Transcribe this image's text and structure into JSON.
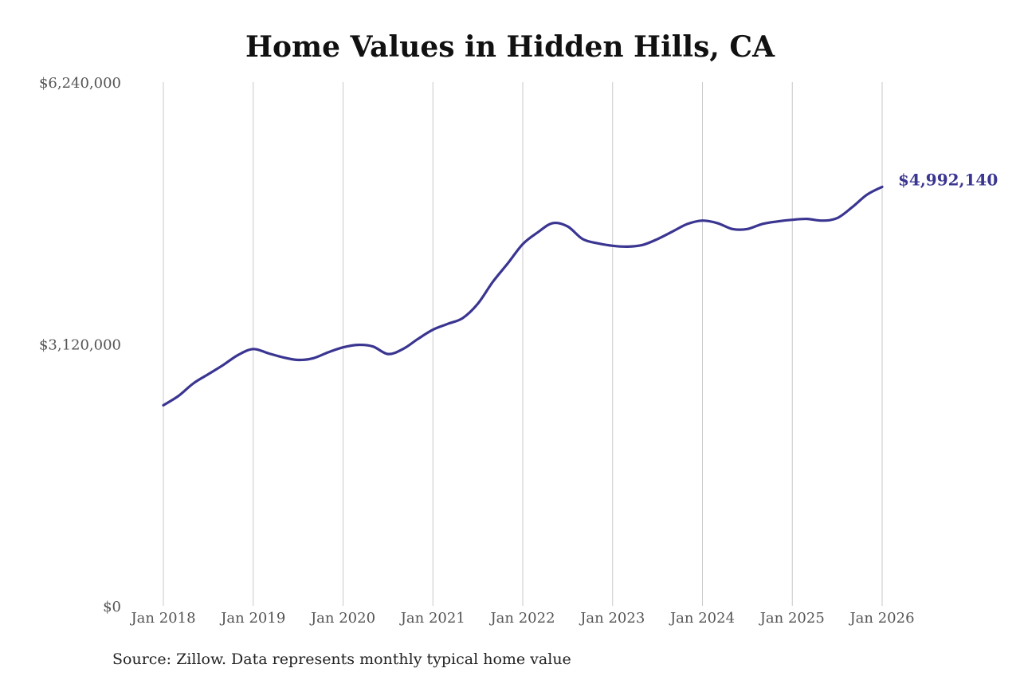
{
  "chart_data": {
    "type": "line",
    "title": "Home Values in Hidden Hills, CA",
    "source": "Source: Zillow. Data represents monthly typical home value",
    "xlabel": "",
    "ylabel": "",
    "ylim": [
      0,
      6240000
    ],
    "y_ticks": [
      {
        "value": 0,
        "label": "$0"
      },
      {
        "value": 3120000,
        "label": "$3,120,000"
      },
      {
        "value": 6240000,
        "label": "$6,240,000"
      }
    ],
    "x_ticks": [
      "Jan 2018",
      "Jan 2019",
      "Jan 2020",
      "Jan 2021",
      "Jan 2022",
      "Jan 2023",
      "Jan 2024",
      "Jan 2025",
      "Jan 2026"
    ],
    "x_range": [
      "2018-01",
      "2026-01"
    ],
    "grid": "vertical",
    "line_color": "#3a3591",
    "end_label": "$4,992,140",
    "series": [
      {
        "x": [
          "2018-01",
          "2018-03",
          "2018-05",
          "2018-07",
          "2018-09",
          "2018-11",
          "2019-01",
          "2019-03",
          "2019-05",
          "2019-07",
          "2019-09",
          "2019-11",
          "2020-01",
          "2020-03",
          "2020-05",
          "2020-07",
          "2020-09",
          "2020-11",
          "2021-01",
          "2021-03",
          "2021-05",
          "2021-07",
          "2021-09",
          "2021-11",
          "2022-01",
          "2022-03",
          "2022-05",
          "2022-07",
          "2022-09",
          "2022-11",
          "2023-01",
          "2023-03",
          "2023-05",
          "2023-07",
          "2023-09",
          "2023-11",
          "2024-01",
          "2024-03",
          "2024-05",
          "2024-07",
          "2024-09",
          "2024-11",
          "2025-01",
          "2025-03",
          "2025-05",
          "2025-07",
          "2025-09",
          "2025-11",
          "2026-01"
        ],
        "values": [
          2390000,
          2500000,
          2650000,
          2760000,
          2870000,
          2990000,
          3060000,
          3010000,
          2960000,
          2930000,
          2950000,
          3020000,
          3080000,
          3110000,
          3090000,
          3000000,
          3060000,
          3180000,
          3290000,
          3360000,
          3430000,
          3600000,
          3860000,
          4080000,
          4310000,
          4450000,
          4560000,
          4520000,
          4370000,
          4320000,
          4290000,
          4280000,
          4300000,
          4370000,
          4460000,
          4550000,
          4590000,
          4560000,
          4490000,
          4490000,
          4550000,
          4580000,
          4600000,
          4610000,
          4590000,
          4620000,
          4750000,
          4900000,
          4992140
        ]
      }
    ]
  }
}
